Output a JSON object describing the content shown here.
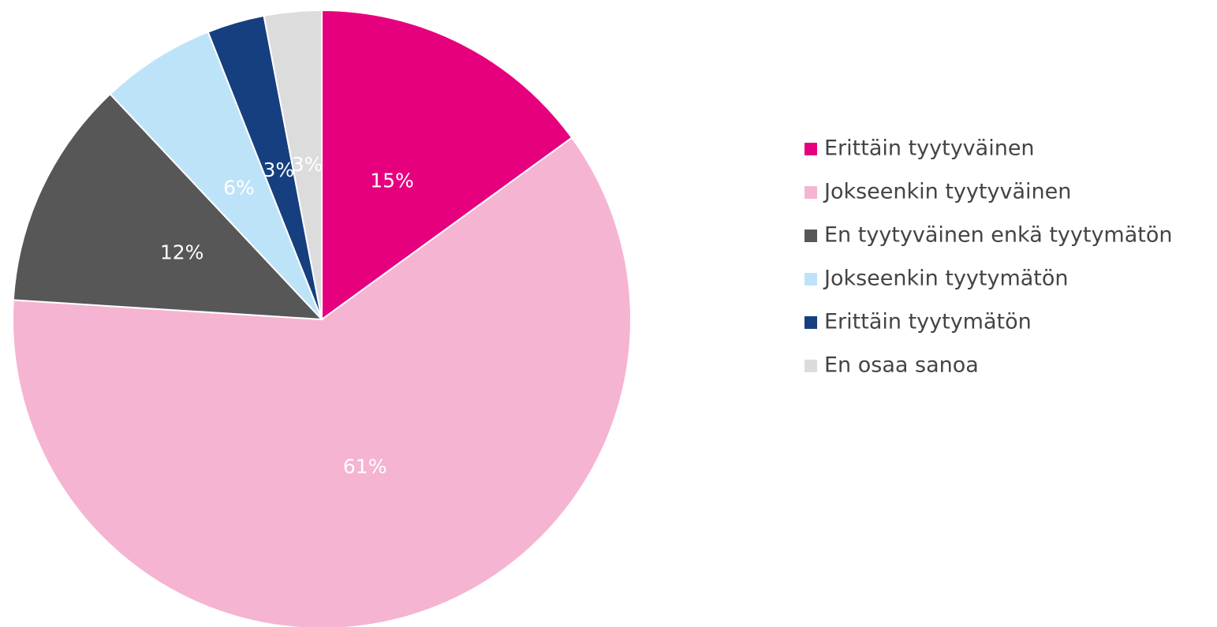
{
  "chart_data": {
    "type": "pie",
    "categories": [
      "Erittäin tyytyväinen",
      "Jokseenkin tyytyväinen",
      "En tyytyväinen enkä tyytymätön",
      "Jokseenkin tyytymätön",
      "Erittäin tyytymätön",
      "En osaa sanoa"
    ],
    "values": [
      15,
      61,
      12,
      6,
      3,
      3
    ],
    "value_labels": [
      "15%",
      "61%",
      "12%",
      "6%",
      "3%",
      "3%"
    ],
    "colors": [
      "#e6007e",
      "#f5b4d2",
      "#575757",
      "#bde3f8",
      "#163f7f",
      "#dcdcdc"
    ],
    "legend": "right"
  }
}
